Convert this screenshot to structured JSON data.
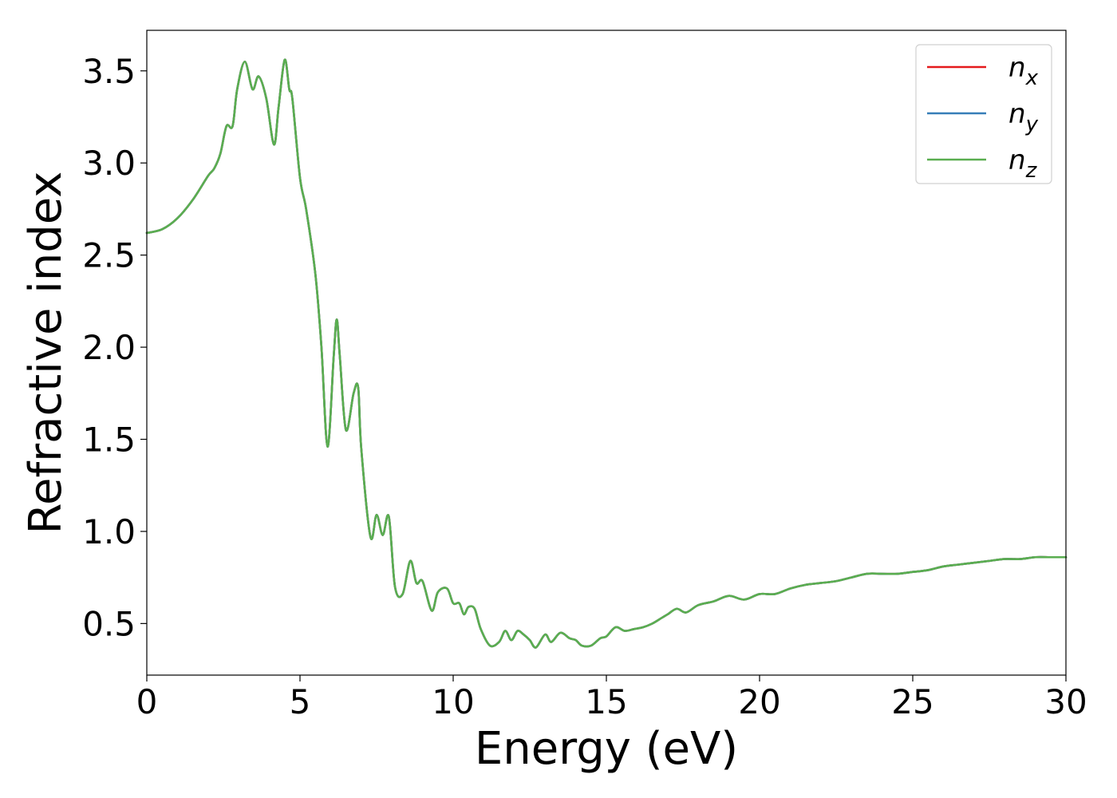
{
  "chart_data": {
    "type": "line",
    "title": "",
    "xlabel": "Energy (eV)",
    "ylabel": "Refractive index",
    "xlim": [
      0,
      30
    ],
    "ylim": [
      0.22,
      3.72
    ],
    "xticks": [
      0,
      5,
      10,
      15,
      20,
      25,
      30
    ],
    "yticks": [
      0.5,
      1.0,
      1.5,
      2.0,
      2.5,
      3.0,
      3.5
    ],
    "grid": false,
    "legend_position": "top-right",
    "series": [
      {
        "name": "n_x",
        "legend_base": "n",
        "legend_sub": "x",
        "color": "#e41a1c",
        "x": [
          0,
          0.5,
          1.0,
          1.5,
          2.0,
          2.2,
          2.4,
          2.6,
          2.8,
          2.95,
          3.2,
          3.45,
          3.65,
          3.9,
          4.15,
          4.3,
          4.5,
          4.65,
          4.75,
          5.0,
          5.2,
          5.5,
          5.7,
          5.9,
          6.1,
          6.2,
          6.3,
          6.5,
          6.75,
          6.9,
          7.0,
          7.3,
          7.5,
          7.7,
          7.9,
          8.1,
          8.35,
          8.6,
          8.8,
          9.0,
          9.3,
          9.5,
          9.8,
          10.0,
          10.2,
          10.35,
          10.5,
          10.7,
          10.9,
          11.2,
          11.5,
          11.7,
          11.9,
          12.1,
          12.3,
          12.5,
          12.7,
          13.0,
          13.2,
          13.5,
          13.8,
          14.0,
          14.2,
          14.5,
          14.8,
          15.0,
          15.3,
          15.6,
          15.9,
          16.2,
          16.5,
          16.8,
          17.0,
          17.3,
          17.6,
          18.0,
          18.5,
          19.0,
          19.5,
          20.0,
          20.5,
          21.0,
          21.5,
          22.0,
          22.5,
          23.0,
          23.5,
          24.0,
          24.5,
          25.0,
          25.5,
          26.0,
          26.5,
          27.0,
          27.5,
          28.0,
          28.5,
          29.0,
          29.5,
          30.0
        ],
        "y": [
          2.62,
          2.64,
          2.7,
          2.8,
          2.93,
          2.97,
          3.05,
          3.2,
          3.2,
          3.4,
          3.55,
          3.4,
          3.47,
          3.35,
          3.1,
          3.3,
          3.56,
          3.4,
          3.35,
          2.92,
          2.75,
          2.4,
          2.0,
          1.46,
          1.95,
          2.15,
          1.95,
          1.55,
          1.75,
          1.78,
          1.45,
          0.97,
          1.09,
          0.98,
          1.08,
          0.7,
          0.66,
          0.84,
          0.72,
          0.73,
          0.57,
          0.67,
          0.69,
          0.61,
          0.61,
          0.55,
          0.59,
          0.58,
          0.47,
          0.38,
          0.4,
          0.46,
          0.41,
          0.46,
          0.44,
          0.41,
          0.37,
          0.44,
          0.4,
          0.45,
          0.42,
          0.41,
          0.38,
          0.38,
          0.42,
          0.43,
          0.48,
          0.46,
          0.47,
          0.48,
          0.5,
          0.53,
          0.55,
          0.58,
          0.56,
          0.6,
          0.62,
          0.65,
          0.63,
          0.66,
          0.66,
          0.69,
          0.71,
          0.72,
          0.73,
          0.75,
          0.77,
          0.77,
          0.77,
          0.78,
          0.79,
          0.81,
          0.82,
          0.83,
          0.84,
          0.85,
          0.85,
          0.86,
          0.86,
          0.86
        ]
      },
      {
        "name": "n_y",
        "legend_base": "n",
        "legend_sub": "y",
        "color": "#377eb8",
        "x": [
          0,
          0.5,
          1.0,
          1.5,
          2.0,
          2.2,
          2.4,
          2.6,
          2.8,
          2.95,
          3.2,
          3.45,
          3.65,
          3.9,
          4.15,
          4.3,
          4.5,
          4.65,
          4.75,
          5.0,
          5.2,
          5.5,
          5.7,
          5.9,
          6.1,
          6.2,
          6.3,
          6.5,
          6.75,
          6.9,
          7.0,
          7.3,
          7.5,
          7.7,
          7.9,
          8.1,
          8.35,
          8.6,
          8.8,
          9.0,
          9.3,
          9.5,
          9.8,
          10.0,
          10.2,
          10.35,
          10.5,
          10.7,
          10.9,
          11.2,
          11.5,
          11.7,
          11.9,
          12.1,
          12.3,
          12.5,
          12.7,
          13.0,
          13.2,
          13.5,
          13.8,
          14.0,
          14.2,
          14.5,
          14.8,
          15.0,
          15.3,
          15.6,
          15.9,
          16.2,
          16.5,
          16.8,
          17.0,
          17.3,
          17.6,
          18.0,
          18.5,
          19.0,
          19.5,
          20.0,
          20.5,
          21.0,
          21.5,
          22.0,
          22.5,
          23.0,
          23.5,
          24.0,
          24.5,
          25.0,
          25.5,
          26.0,
          26.5,
          27.0,
          27.5,
          28.0,
          28.5,
          29.0,
          29.5,
          30.0
        ],
        "y": [
          2.62,
          2.64,
          2.7,
          2.8,
          2.93,
          2.97,
          3.05,
          3.2,
          3.2,
          3.4,
          3.55,
          3.4,
          3.47,
          3.35,
          3.1,
          3.3,
          3.56,
          3.4,
          3.35,
          2.92,
          2.75,
          2.4,
          2.0,
          1.46,
          1.95,
          2.15,
          1.95,
          1.55,
          1.75,
          1.78,
          1.45,
          0.97,
          1.09,
          0.98,
          1.08,
          0.7,
          0.66,
          0.84,
          0.72,
          0.73,
          0.57,
          0.67,
          0.69,
          0.61,
          0.61,
          0.55,
          0.59,
          0.58,
          0.47,
          0.38,
          0.4,
          0.46,
          0.41,
          0.46,
          0.44,
          0.41,
          0.37,
          0.44,
          0.4,
          0.45,
          0.42,
          0.41,
          0.38,
          0.38,
          0.42,
          0.43,
          0.48,
          0.46,
          0.47,
          0.48,
          0.5,
          0.53,
          0.55,
          0.58,
          0.56,
          0.6,
          0.62,
          0.65,
          0.63,
          0.66,
          0.66,
          0.69,
          0.71,
          0.72,
          0.73,
          0.75,
          0.77,
          0.77,
          0.77,
          0.78,
          0.79,
          0.81,
          0.82,
          0.83,
          0.84,
          0.85,
          0.85,
          0.86,
          0.86,
          0.86
        ]
      },
      {
        "name": "n_z",
        "legend_base": "n",
        "legend_sub": "z",
        "color": "#5aae50",
        "x": [
          0,
          0.5,
          1.0,
          1.5,
          2.0,
          2.2,
          2.4,
          2.6,
          2.8,
          2.95,
          3.2,
          3.45,
          3.65,
          3.9,
          4.15,
          4.3,
          4.5,
          4.65,
          4.75,
          5.0,
          5.2,
          5.5,
          5.7,
          5.9,
          6.1,
          6.2,
          6.3,
          6.5,
          6.75,
          6.9,
          7.0,
          7.3,
          7.5,
          7.7,
          7.9,
          8.1,
          8.35,
          8.6,
          8.8,
          9.0,
          9.3,
          9.5,
          9.8,
          10.0,
          10.2,
          10.35,
          10.5,
          10.7,
          10.9,
          11.2,
          11.5,
          11.7,
          11.9,
          12.1,
          12.3,
          12.5,
          12.7,
          13.0,
          13.2,
          13.5,
          13.8,
          14.0,
          14.2,
          14.5,
          14.8,
          15.0,
          15.3,
          15.6,
          15.9,
          16.2,
          16.5,
          16.8,
          17.0,
          17.3,
          17.6,
          18.0,
          18.5,
          19.0,
          19.5,
          20.0,
          20.5,
          21.0,
          21.5,
          22.0,
          22.5,
          23.0,
          23.5,
          24.0,
          24.5,
          25.0,
          25.5,
          26.0,
          26.5,
          27.0,
          27.5,
          28.0,
          28.5,
          29.0,
          29.5,
          30.0
        ],
        "y": [
          2.62,
          2.64,
          2.7,
          2.8,
          2.93,
          2.97,
          3.05,
          3.2,
          3.2,
          3.4,
          3.55,
          3.4,
          3.47,
          3.35,
          3.1,
          3.3,
          3.56,
          3.4,
          3.35,
          2.92,
          2.75,
          2.4,
          2.0,
          1.46,
          1.95,
          2.15,
          1.95,
          1.55,
          1.75,
          1.78,
          1.45,
          0.97,
          1.09,
          0.98,
          1.08,
          0.7,
          0.66,
          0.84,
          0.72,
          0.73,
          0.57,
          0.67,
          0.69,
          0.61,
          0.61,
          0.55,
          0.59,
          0.58,
          0.47,
          0.38,
          0.4,
          0.46,
          0.41,
          0.46,
          0.44,
          0.41,
          0.37,
          0.44,
          0.4,
          0.45,
          0.42,
          0.41,
          0.38,
          0.38,
          0.42,
          0.43,
          0.48,
          0.46,
          0.47,
          0.48,
          0.5,
          0.53,
          0.55,
          0.58,
          0.56,
          0.6,
          0.62,
          0.65,
          0.63,
          0.66,
          0.66,
          0.69,
          0.71,
          0.72,
          0.73,
          0.75,
          0.77,
          0.77,
          0.77,
          0.78,
          0.79,
          0.81,
          0.82,
          0.83,
          0.84,
          0.85,
          0.85,
          0.86,
          0.86,
          0.86
        ]
      }
    ]
  }
}
